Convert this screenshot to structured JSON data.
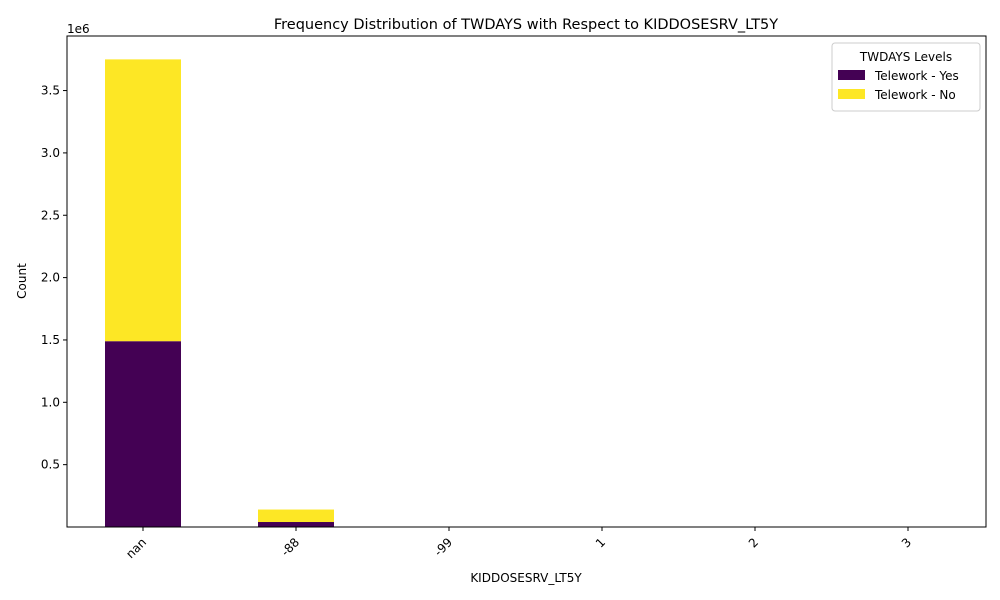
{
  "chart_data": {
    "type": "bar",
    "stacked": true,
    "title": "Frequency Distribution of TWDAYS with Respect to KIDDOSESRV_LT5Y",
    "xlabel": "KIDDOSESRV_LT5Y",
    "ylabel": "Count",
    "y_scale_label": "1e6",
    "categories": [
      "nan",
      "-88",
      "-99",
      "1",
      "2",
      "3"
    ],
    "series": [
      {
        "name": "Telework - Yes",
        "color": "#440154",
        "values": [
          1490000,
          40000,
          0,
          0,
          0,
          0
        ]
      },
      {
        "name": "Telework - No",
        "color": "#fde725",
        "values": [
          2260000,
          100000,
          0,
          0,
          0,
          0
        ]
      }
    ],
    "yticks": [
      {
        "value": 500000,
        "label": "0.5"
      },
      {
        "value": 1000000,
        "label": "1.0"
      },
      {
        "value": 1500000,
        "label": "1.5"
      },
      {
        "value": 2000000,
        "label": "2.0"
      },
      {
        "value": 2500000,
        "label": "2.5"
      },
      {
        "value": 3000000,
        "label": "3.0"
      },
      {
        "value": 3500000,
        "label": "3.5"
      }
    ],
    "ylim": [
      0,
      3937500
    ],
    "legend": {
      "title": "TWDAYS Levels",
      "position": "top-right"
    }
  }
}
